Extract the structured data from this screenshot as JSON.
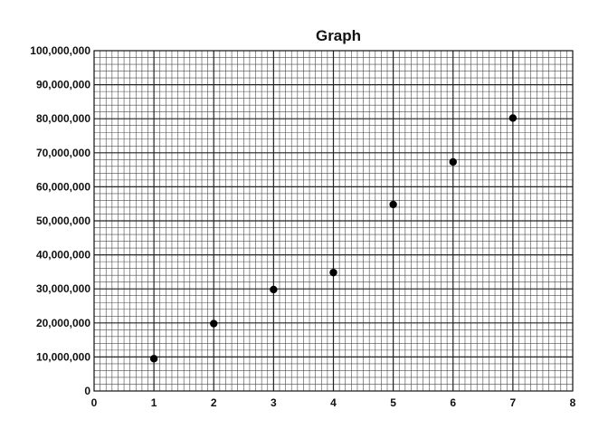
{
  "chart_data": {
    "type": "scatter",
    "title": "Graph",
    "xlabel": "",
    "ylabel": "",
    "xlim": [
      0,
      8
    ],
    "ylim": [
      0,
      100000000
    ],
    "grid": true,
    "x_ticks": [
      0,
      1,
      2,
      3,
      4,
      5,
      6,
      7,
      8
    ],
    "x_tick_labels": [
      "0",
      "1",
      "2",
      "3",
      "4",
      "5",
      "6",
      "7",
      "8"
    ],
    "y_ticks": [
      0,
      10000000,
      20000000,
      30000000,
      40000000,
      50000000,
      60000000,
      70000000,
      80000000,
      90000000,
      100000000
    ],
    "y_tick_labels": [
      "0",
      "10,000,000",
      "20,000,000",
      "30,000,000",
      "40,000,000",
      "50,000,000",
      "60,000,000",
      "70,000,000",
      "80,000,000",
      "90,000,000",
      "100,000,000"
    ],
    "series": [
      {
        "x": [
          1,
          2,
          3,
          4,
          5,
          6,
          7
        ],
        "y": [
          9500000,
          19800000,
          29800000,
          34800000,
          54800000,
          67300000,
          80200000
        ],
        "color": "#000000"
      }
    ]
  }
}
